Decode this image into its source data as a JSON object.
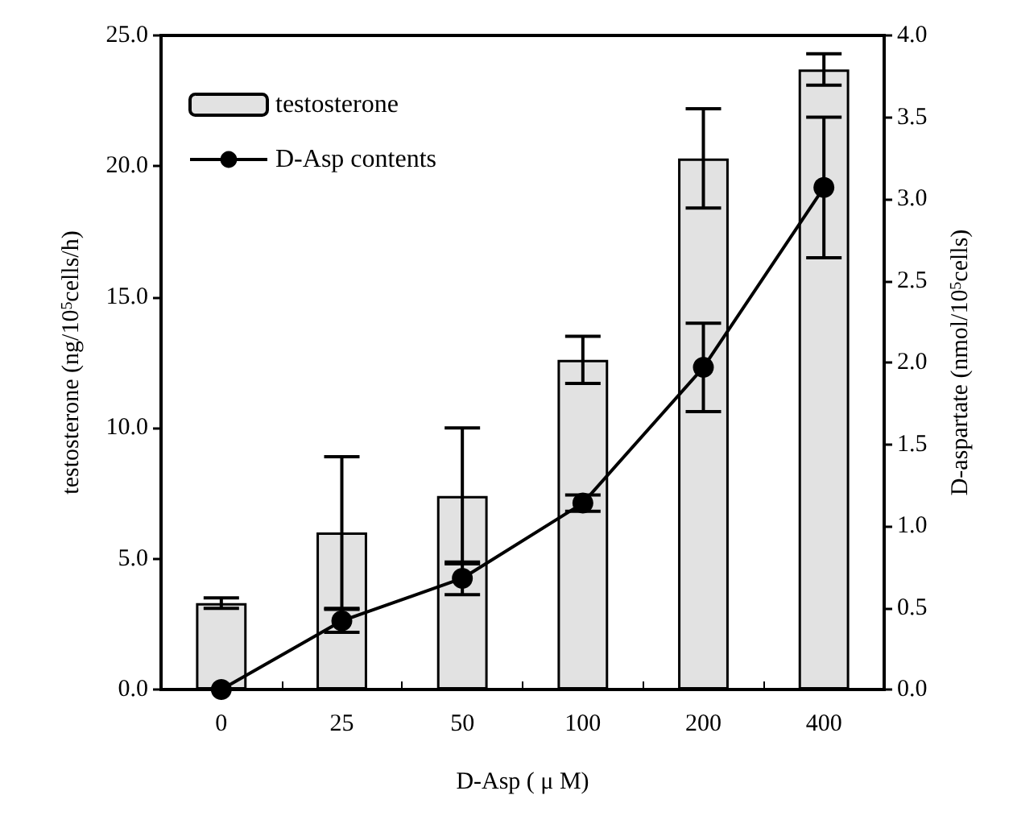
{
  "chart_data": {
    "type": "bar",
    "xlabel": "D-Asp ( μ M)",
    "ylabel": "testosterone (ng/10$^{5}$cells/h)",
    "y2label": "D-aspartate (nmol/10$^{5}$cells)",
    "categories": [
      "0",
      "25",
      "50",
      "100",
      "200",
      "400"
    ],
    "series": [
      {
        "name": "testosterone",
        "color": "#e2e2e2",
        "values": [
          3.3,
          6.0,
          7.4,
          12.6,
          20.3,
          23.7
        ],
        "errors": [
          0.2,
          2.9,
          2.6,
          0.9,
          1.9,
          0.6
        ]
      },
      {
        "name": "D-Asp contents",
        "type": "line",
        "axis": "y2",
        "color": "#000000",
        "marker": "circle",
        "values": [
          0.0,
          0.42,
          0.68,
          1.14,
          1.97,
          3.07
        ],
        "errors": [
          null,
          0.07,
          0.1,
          0.05,
          0.27,
          0.43
        ]
      }
    ],
    "ylim": [
      0,
      25
    ],
    "yticks": [
      {
        "value": 0,
        "label": "0.0"
      },
      {
        "value": 5,
        "label": "5.0"
      },
      {
        "value": 10,
        "label": "10.0"
      },
      {
        "value": 15,
        "label": "15.0"
      },
      {
        "value": 20,
        "label": "20.0"
      },
      {
        "value": 25,
        "label": "25.0"
      }
    ],
    "y2lim": [
      0,
      4
    ],
    "y2ticks": [
      {
        "value": 0,
        "label": "0.0"
      },
      {
        "value": 0.5,
        "label": "0.5"
      },
      {
        "value": 1,
        "label": "1.0"
      },
      {
        "value": 1.5,
        "label": "1.5"
      },
      {
        "value": 2,
        "label": "2.0"
      },
      {
        "value": 2.5,
        "label": "2.5"
      },
      {
        "value": 3,
        "label": "3.0"
      },
      {
        "value": 3.5,
        "label": "3.5"
      },
      {
        "value": 4,
        "label": "4.0"
      }
    ],
    "grid": false,
    "legend": "top left"
  }
}
